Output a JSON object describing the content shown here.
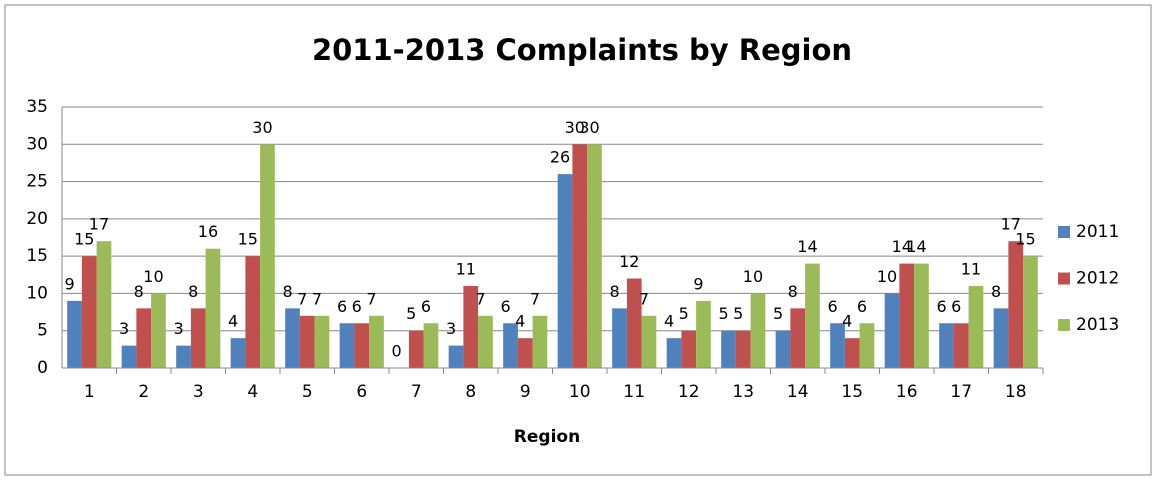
{
  "chart_data": {
    "type": "bar",
    "title": "2011-2013 Complaints by Region",
    "x_label": "Region",
    "categories": [
      "1",
      "2",
      "3",
      "4",
      "5",
      "6",
      "7",
      "8",
      "9",
      "10",
      "11",
      "12",
      "13",
      "14",
      "15",
      "16",
      "17",
      "18"
    ],
    "series": [
      {
        "name": "2011",
        "color": "#4f81bd",
        "values": [
          9,
          3,
          3,
          4,
          8,
          6,
          0,
          3,
          6,
          26,
          8,
          4,
          5,
          5,
          6,
          10,
          6,
          8
        ]
      },
      {
        "name": "2012",
        "color": "#c0504d",
        "values": [
          15,
          8,
          8,
          15,
          7,
          6,
          5,
          11,
          4,
          30,
          12,
          5,
          5,
          8,
          4,
          14,
          6,
          17
        ]
      },
      {
        "name": "2013",
        "color": "#9bbb59",
        "values": [
          17,
          10,
          16,
          30,
          7,
          7,
          6,
          7,
          7,
          30,
          7,
          9,
          10,
          14,
          6,
          14,
          11,
          15
        ]
      }
    ],
    "ylim": [
      0,
      35
    ],
    "yticks": [
      0,
      5,
      10,
      15,
      20,
      25,
      30,
      35
    ],
    "grid": true,
    "legend": "right"
  }
}
